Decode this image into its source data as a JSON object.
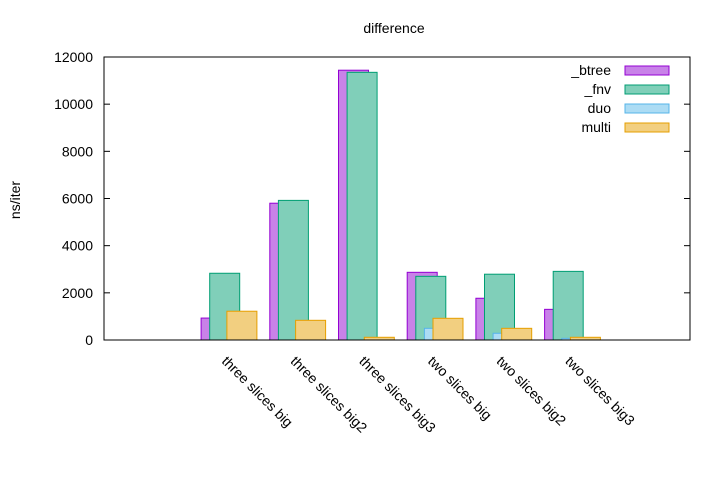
{
  "chart_data": {
    "type": "bar",
    "title": "difference",
    "xlabel": "",
    "ylabel": "ns/iter",
    "ylim": [
      0,
      12000
    ],
    "yticks": [
      0,
      2000,
      4000,
      6000,
      8000,
      10000,
      12000
    ],
    "grid": false,
    "legend_placement": "top-right",
    "categories": [
      "three slices big",
      "three slices big2",
      "three slices big3",
      "two slices big",
      "two slices big2",
      "two slices big3"
    ],
    "series": [
      {
        "name": "_btree",
        "fill": "#c882e8",
        "stroke": "#9400d3",
        "values": [
          930,
          5800,
          11440,
          2870,
          1770,
          1300
        ]
      },
      {
        "name": "_fnv",
        "fill": "#80cfb9",
        "stroke": "#009e73",
        "values": [
          2830,
          5920,
          11350,
          2700,
          2790,
          2910
        ]
      },
      {
        "name": "duo",
        "fill": "#acdcf4",
        "stroke": "#56b4e9",
        "values": [
          0,
          0,
          0,
          495,
          285,
          70
        ]
      },
      {
        "name": "multi",
        "fill": "#f2cf80",
        "stroke": "#e69f00",
        "values": [
          1220,
          835,
          115,
          920,
          495,
          115
        ]
      }
    ]
  }
}
